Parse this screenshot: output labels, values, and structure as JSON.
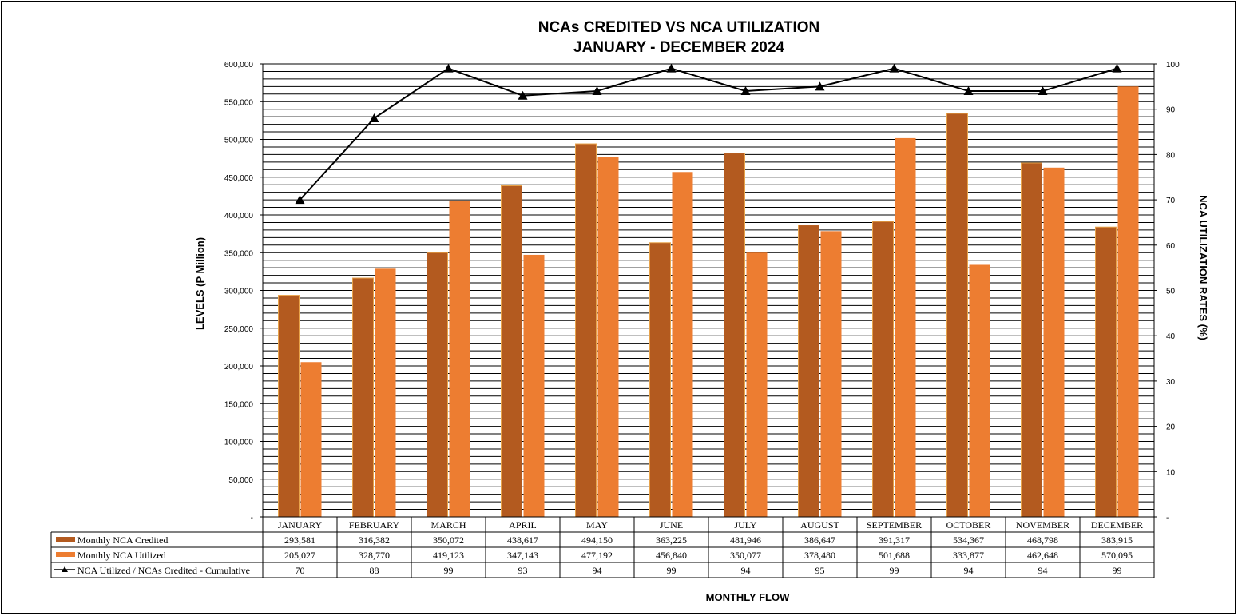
{
  "chart_data": {
    "type": "bar",
    "title": "NCAs CREDITED VS NCA UTILIZATION",
    "subtitle": "JANUARY  - DECEMBER 2024",
    "xlabel": "MONTHLY FLOW",
    "ylabel": "LEVELS (P Million)",
    "y2label": "NCA UTILIZATION RATES (%)",
    "categories": [
      "JANUARY",
      "FEBRUARY",
      "MARCH",
      "APRIL",
      "MAY",
      "JUNE",
      "JULY",
      "AUGUST",
      "SEPTEMBER",
      "OCTOBER",
      "NOVEMBER",
      "DECEMBER"
    ],
    "ylim": [
      0,
      600000
    ],
    "y2lim": [
      0,
      100
    ],
    "yticks": [
      "-",
      "50,000",
      "100,000",
      "150,000",
      "200,000",
      "250,000",
      "300,000",
      "350,000",
      "400,000",
      "450,000",
      "500,000",
      "550,000",
      "600,000"
    ],
    "y2ticks": [
      "-",
      "10",
      "20",
      "30",
      "40",
      "50",
      "60",
      "70",
      "80",
      "90",
      "100"
    ],
    "grid": true,
    "series": [
      {
        "name": "Monthly NCA Credited",
        "kind": "bar",
        "color": "#B35A1F",
        "values": [
          293581,
          316382,
          350072,
          438617,
          494150,
          363225,
          481946,
          386647,
          391317,
          534367,
          468798,
          383915
        ],
        "labels": [
          "293,581",
          "316,382",
          "350,072",
          "438,617",
          "494,150",
          "363,225",
          "481,946",
          "386,647",
          "391,317",
          "534,367",
          "468,798",
          "383,915"
        ]
      },
      {
        "name": "Monthly NCA Utilized",
        "kind": "bar",
        "color": "#ED7D31",
        "values": [
          205027,
          328770,
          419123,
          347143,
          477192,
          456840,
          350077,
          378480,
          501688,
          333877,
          462648,
          570095
        ],
        "labels": [
          "205,027",
          "328,770",
          "419,123",
          "347,143",
          "477,192",
          "456,840",
          "350,077",
          "378,480",
          "501,688",
          "333,877",
          "462,648",
          "570,095"
        ]
      },
      {
        "name": "NCA Utilized / NCAs Credited - Cumulative",
        "kind": "line",
        "axis": "right",
        "color": "#000000",
        "values": [
          70,
          88,
          99,
          93,
          94,
          99,
          94,
          95,
          99,
          94,
          94,
          99
        ],
        "labels": [
          "70",
          "88",
          "99",
          "93",
          "94",
          "99",
          "94",
          "95",
          "99",
          "94",
          "94",
          "99"
        ]
      }
    ]
  }
}
